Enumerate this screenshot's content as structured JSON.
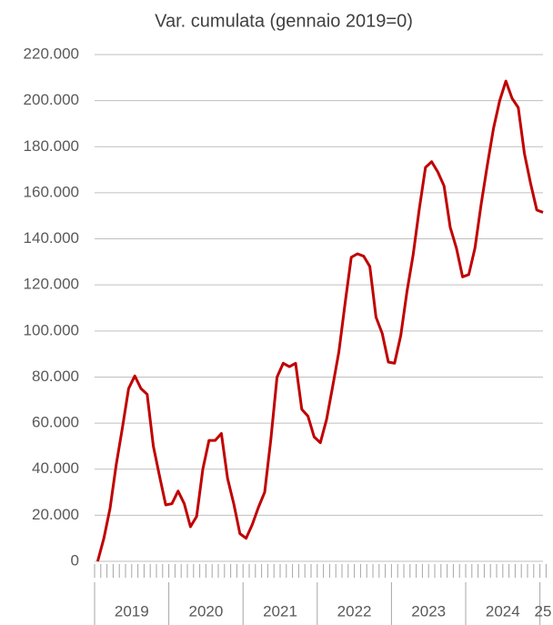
{
  "chart_data": {
    "type": "line",
    "title": "Var. cumulata (gennaio 2019=0)",
    "year_labels": [
      "2019",
      "2020",
      "2021",
      "2022",
      "2023",
      "2024",
      "25"
    ],
    "series": [
      {
        "name": null,
        "color": "#c00000",
        "values": [
          0,
          10000,
          23000,
          42000,
          58000,
          75000,
          80500,
          75000,
          72500,
          50000,
          37000,
          24500,
          25000,
          30500,
          25000,
          15000,
          19500,
          40000,
          52500,
          52500,
          55500,
          36000,
          25000,
          12000,
          10000,
          16000,
          23500,
          30000,
          53000,
          80000,
          86000,
          84500,
          86000,
          66000,
          63000,
          54000,
          51500,
          61500,
          76000,
          91000,
          112000,
          132000,
          133500,
          132500,
          128000,
          106000,
          99000,
          86500,
          86000,
          98000,
          117000,
          133000,
          153000,
          171000,
          173500,
          169000,
          163000,
          145000,
          136000,
          123500,
          124500,
          136000,
          155000,
          172000,
          188000,
          200000,
          208500,
          201000,
          197000,
          177000,
          164000,
          152500,
          151500
        ]
      }
    ],
    "ylim": [
      0,
      220000
    ],
    "yticks": [
      0,
      {
        "value": 20000,
        "label": "20.000"
      },
      {
        "value": 40000,
        "label": "40.000"
      },
      {
        "value": 60000,
        "label": "60.000"
      },
      {
        "value": 80000,
        "label": "80.000"
      },
      {
        "value": 100000,
        "label": "100.000"
      },
      {
        "value": 120000,
        "label": "120.000"
      },
      {
        "value": 140000,
        "label": "140.000"
      },
      {
        "value": 160000,
        "label": "160.000"
      },
      {
        "value": 180000,
        "label": "180.000"
      },
      {
        "value": 200000,
        "label": "200.000"
      },
      {
        "value": 220000,
        "label": "220.000"
      }
    ],
    "grid": true
  }
}
